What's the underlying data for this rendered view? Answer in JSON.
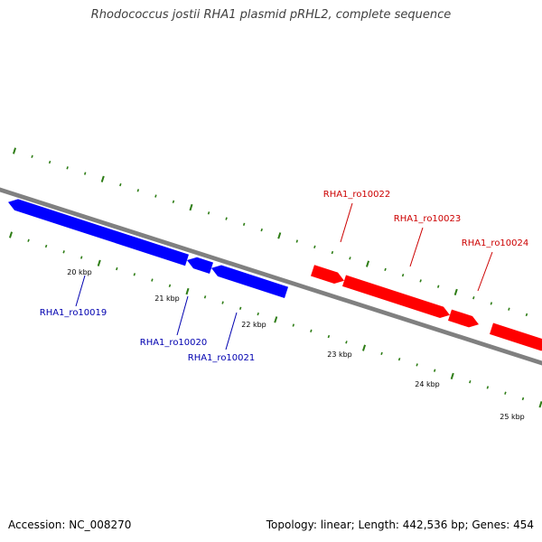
{
  "title": "Rhodococcus jostii RHA1 plasmid pRHL2, complete sequence",
  "footer": {
    "accession": "Accession: NC_008270",
    "summary": "Topology: linear; Length: 442,536 bp; Genes: 454"
  },
  "colors": {
    "backbone": "#808080",
    "tick": "#2e7d16",
    "reverse_strand_gene": "#0000ff",
    "forward_strand_gene": "#ff0000"
  },
  "ruler": {
    "labeled_ticks_kbp": [
      20,
      21,
      22,
      23,
      24,
      25
    ],
    "tick_suffix": " kbp"
  },
  "genes": [
    {
      "name": "RHA1_ro10019",
      "strand": "reverse"
    },
    {
      "name": "RHA1_ro10020",
      "strand": "reverse"
    },
    {
      "name": "RHA1_ro10021",
      "strand": "reverse"
    },
    {
      "name": "RHA1_ro10022",
      "strand": "forward"
    },
    {
      "name": "RHA1_ro10023",
      "strand": "forward"
    },
    {
      "name": "RHA1_ro10024",
      "strand": "forward"
    }
  ]
}
